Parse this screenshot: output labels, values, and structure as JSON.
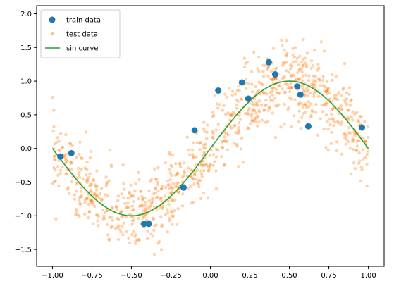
{
  "chart_data": {
    "type": "scatter",
    "title": "",
    "xlabel": "",
    "ylabel": "",
    "xlim": [
      -1.1,
      1.1
    ],
    "ylim": [
      -1.75,
      2.12
    ],
    "xticks": [
      -1.0,
      -0.75,
      -0.5,
      -0.25,
      0.0,
      0.25,
      0.5,
      0.75,
      1.0
    ],
    "xtick_labels": [
      "−1.00",
      "−0.75",
      "−0.50",
      "−0.25",
      "0.00",
      "0.25",
      "0.50",
      "0.75",
      "1.00"
    ],
    "yticks": [
      -1.5,
      -1.0,
      -0.5,
      0.0,
      0.5,
      1.0,
      1.5,
      2.0
    ],
    "ytick_labels": [
      "−1.5",
      "−1.0",
      "−0.5",
      "0.0",
      "0.5",
      "1.0",
      "1.5",
      "2.0"
    ],
    "grid": false,
    "legend_position": "top-left",
    "series": [
      {
        "name": "train data",
        "kind": "scatter",
        "color": "#1f77b4",
        "x": [
          -0.95,
          -0.88,
          -0.42,
          -0.39,
          -0.17,
          -0.1,
          0.05,
          0.2,
          0.24,
          0.37,
          0.41,
          0.55,
          0.57,
          0.62,
          0.96
        ],
        "y": [
          -0.12,
          -0.07,
          -1.12,
          -1.12,
          -0.58,
          0.27,
          0.86,
          0.98,
          0.74,
          1.28,
          1.1,
          0.92,
          0.8,
          0.33,
          0.31
        ]
      },
      {
        "name": "test data",
        "kind": "scatter",
        "color": "#ff7f0e",
        "x_range": [
          -1.0,
          1.0
        ],
        "noise_std": 0.28,
        "count": 1000
      },
      {
        "name": "sin curve",
        "kind": "line",
        "color": "#2ca02c",
        "function": "sin(pi*x)",
        "x_range": [
          -1.0,
          1.0
        ]
      }
    ]
  }
}
